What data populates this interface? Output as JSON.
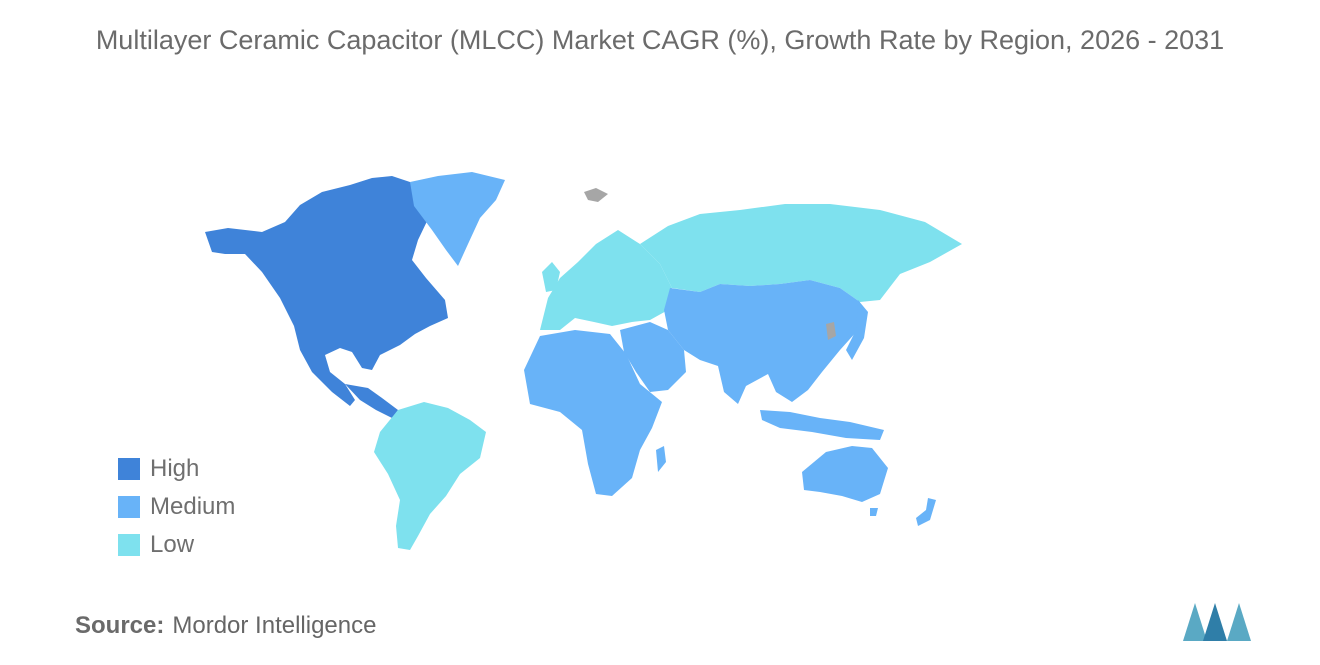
{
  "title": "Multilayer Ceramic Capacitor (MLCC) Market CAGR (%), Growth Rate by Region, 2026 - 2031",
  "legend": [
    {
      "label": "High",
      "color": "#3f83d9"
    },
    {
      "label": "Medium",
      "color": "#68b3f8"
    },
    {
      "label": "Low",
      "color": "#7ee1ee"
    }
  ],
  "colors": {
    "high": "#3f83d9",
    "medium": "#68b3f8",
    "low": "#7ee1ee",
    "no_data": "#a6a6a6",
    "logo": "#5aa9c4"
  },
  "regions": [
    {
      "name": "North America",
      "level": "High"
    },
    {
      "name": "Greenland",
      "level": "Medium"
    },
    {
      "name": "South America",
      "level": "Low"
    },
    {
      "name": "Europe",
      "level": "Low"
    },
    {
      "name": "Russia",
      "level": "Low"
    },
    {
      "name": "Africa",
      "level": "Medium"
    },
    {
      "name": "Middle East",
      "level": "Medium"
    },
    {
      "name": "Asia",
      "level": "Medium"
    },
    {
      "name": "Australia and New Zealand",
      "level": "Medium"
    }
  ],
  "source": {
    "label": "Source:",
    "value": "Mordor Intelligence"
  },
  "logo": {
    "icon": "mordor-intelligence-logo"
  }
}
